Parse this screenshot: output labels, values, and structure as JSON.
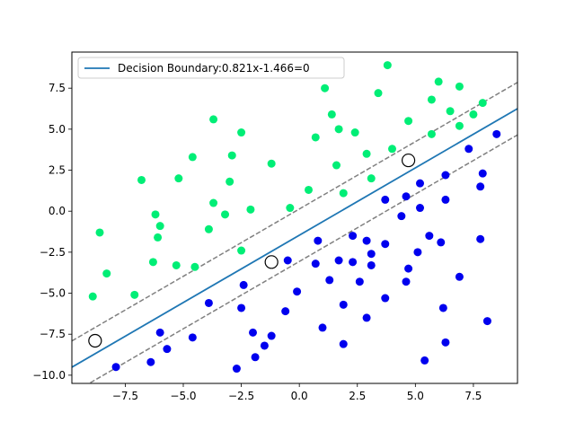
{
  "chart_data": {
    "type": "scatter",
    "title": "",
    "xlabel": "",
    "ylabel": "",
    "xlim": [
      -9.8,
      9.4
    ],
    "ylim": [
      -10.5,
      9.7
    ],
    "xticks": [
      -7.5,
      -5.0,
      -2.5,
      0.0,
      2.5,
      5.0,
      7.5
    ],
    "yticks": [
      -10.0,
      -7.5,
      -5.0,
      -2.5,
      0.0,
      2.5,
      5.0,
      7.5
    ],
    "grid": false,
    "legend": {
      "placement": "top-left",
      "entries": [
        "Decision Boundary:0.821x-1.466=0"
      ]
    },
    "colors": {
      "class_a": "#00ee76",
      "class_b": "#0000ee",
      "boundary": "#1f77b4",
      "margin": "#808080"
    },
    "boundary": {
      "slope": 0.821,
      "intercept": -1.466
    },
    "margin_offset": 1.6,
    "support_vectors": [
      [
        -8.8,
        -7.9
      ],
      [
        -1.2,
        -3.1
      ],
      [
        4.7,
        3.1
      ]
    ],
    "series": [
      {
        "color": "class_a",
        "points": [
          [
            -8.9,
            -5.2
          ],
          [
            -8.6,
            -1.3
          ],
          [
            -8.3,
            -3.8
          ],
          [
            -7.1,
            -5.1
          ],
          [
            -6.8,
            1.9
          ],
          [
            -6.3,
            -3.1
          ],
          [
            -6.2,
            -0.2
          ],
          [
            -6.1,
            -1.6
          ],
          [
            -6.0,
            -0.9
          ],
          [
            -5.2,
            2.0
          ],
          [
            -5.3,
            -3.3
          ],
          [
            -4.6,
            3.3
          ],
          [
            -4.5,
            -3.4
          ],
          [
            -3.9,
            -1.1
          ],
          [
            -3.7,
            5.6
          ],
          [
            -3.7,
            0.5
          ],
          [
            -3.2,
            -0.2
          ],
          [
            -3.0,
            1.8
          ],
          [
            -2.9,
            3.4
          ],
          [
            -2.5,
            4.8
          ],
          [
            -2.5,
            -2.4
          ],
          [
            -2.1,
            0.1
          ],
          [
            -1.2,
            2.9
          ],
          [
            -0.4,
            0.2
          ],
          [
            0.4,
            1.3
          ],
          [
            0.7,
            4.5
          ],
          [
            1.1,
            7.5
          ],
          [
            1.4,
            5.9
          ],
          [
            1.6,
            2.8
          ],
          [
            1.7,
            5.0
          ],
          [
            1.9,
            1.1
          ],
          [
            2.4,
            4.8
          ],
          [
            2.9,
            3.5
          ],
          [
            3.1,
            2.0
          ],
          [
            3.4,
            7.2
          ],
          [
            3.8,
            8.9
          ],
          [
            4.0,
            3.8
          ],
          [
            4.7,
            5.5
          ],
          [
            5.7,
            6.8
          ],
          [
            5.7,
            4.7
          ],
          [
            6.0,
            7.9
          ],
          [
            6.5,
            6.1
          ],
          [
            6.9,
            7.6
          ],
          [
            6.9,
            5.2
          ],
          [
            7.5,
            5.9
          ],
          [
            7.9,
            6.6
          ]
        ]
      },
      {
        "color": "class_b",
        "points": [
          [
            -7.9,
            -9.5
          ],
          [
            -6.4,
            -9.2
          ],
          [
            -6.0,
            -7.4
          ],
          [
            -5.7,
            -8.4
          ],
          [
            -4.6,
            -7.7
          ],
          [
            -3.9,
            -5.6
          ],
          [
            -2.7,
            -9.6
          ],
          [
            -2.5,
            -5.9
          ],
          [
            -2.4,
            -4.5
          ],
          [
            -2.0,
            -7.4
          ],
          [
            -1.9,
            -8.9
          ],
          [
            -1.5,
            -8.2
          ],
          [
            -1.2,
            -7.6
          ],
          [
            -0.6,
            -6.1
          ],
          [
            -0.5,
            -3.0
          ],
          [
            -0.1,
            -4.9
          ],
          [
            0.7,
            -3.2
          ],
          [
            0.8,
            -1.8
          ],
          [
            1.0,
            -7.1
          ],
          [
            1.3,
            -4.2
          ],
          [
            1.7,
            -3.0
          ],
          [
            1.9,
            -8.1
          ],
          [
            1.9,
            -5.7
          ],
          [
            2.3,
            -1.5
          ],
          [
            2.3,
            -3.1
          ],
          [
            2.6,
            -4.3
          ],
          [
            2.9,
            -6.5
          ],
          [
            2.9,
            -1.8
          ],
          [
            3.1,
            -3.3
          ],
          [
            3.1,
            -2.6
          ],
          [
            3.7,
            0.7
          ],
          [
            3.7,
            -2.0
          ],
          [
            3.7,
            -5.3
          ],
          [
            4.4,
            -0.3
          ],
          [
            4.6,
            0.9
          ],
          [
            4.6,
            -4.3
          ],
          [
            4.7,
            -3.5
          ],
          [
            5.1,
            -2.5
          ],
          [
            5.2,
            0.2
          ],
          [
            5.2,
            1.7
          ],
          [
            5.4,
            -9.1
          ],
          [
            5.6,
            -1.5
          ],
          [
            6.1,
            -1.9
          ],
          [
            6.2,
            -5.9
          ],
          [
            6.3,
            -8.0
          ],
          [
            6.3,
            0.7
          ],
          [
            6.3,
            2.2
          ],
          [
            6.9,
            -4.0
          ],
          [
            7.3,
            3.8
          ],
          [
            7.8,
            1.5
          ],
          [
            7.8,
            -1.7
          ],
          [
            7.9,
            2.3
          ],
          [
            8.1,
            -6.7
          ],
          [
            8.5,
            4.7
          ]
        ]
      }
    ]
  }
}
